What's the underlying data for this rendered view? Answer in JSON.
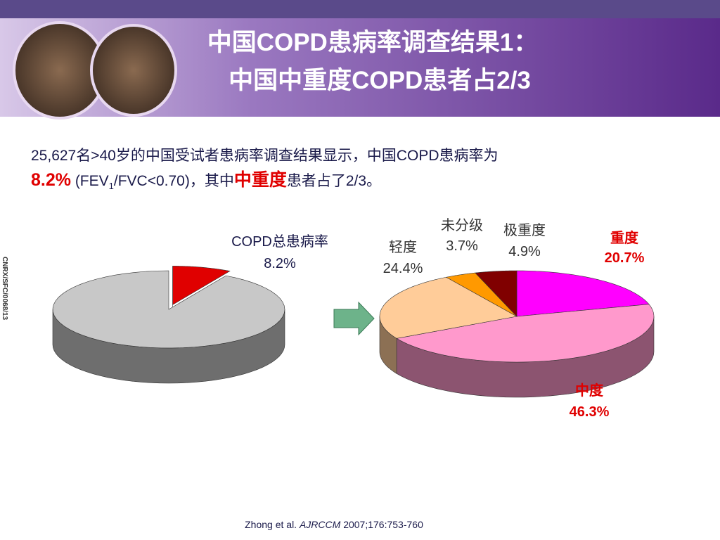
{
  "header": {
    "title_line1": "中国COPD患病率调查结果1：",
    "title_line2": "中国中重度COPD患者占2/3"
  },
  "body": {
    "runs": [
      "25,627名>40岁的中国受试者患病率调查结果显示，中国COPD患病率为",
      "8.2%",
      " (FEV",
      "1",
      "/FVC<0.70)，其中",
      "中重度",
      "患者占了2/3。"
    ]
  },
  "side_code": "CNRX/SFC/0068/13",
  "citation": {
    "authors": "Zhong et al.",
    "journal": "AJRCCM",
    "details": "2007;176:753-760"
  },
  "chart_data": [
    {
      "type": "pie",
      "categories": [
        "COPD总患病率",
        null
      ],
      "values": [
        8.2,
        91.8
      ],
      "value_labels": [
        "8.2%",
        null
      ],
      "colors": [
        "#e00000",
        "#c8c8c8"
      ]
    },
    {
      "type": "pie",
      "categories": [
        "重度",
        "中度",
        "轻度",
        "未分级",
        "极重度"
      ],
      "values": [
        20.7,
        46.3,
        24.4,
        3.7,
        4.9
      ],
      "value_labels": [
        "20.7%",
        "46.3%",
        "24.4%",
        "3.7%",
        "4.9%"
      ],
      "colors": [
        "#ff00ff",
        "#ff99cc",
        "#ffcc99",
        "#ff9900",
        "#800000"
      ]
    }
  ]
}
